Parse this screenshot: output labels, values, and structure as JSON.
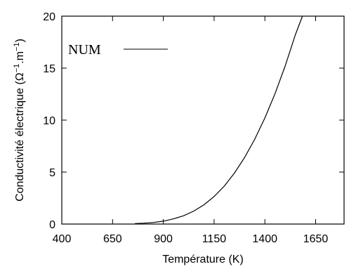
{
  "chart_data": {
    "type": "line",
    "xlabel": "Température (K)",
    "ylabel_main": "Conductivité électrique (Ω",
    "ylabel_exp1": "−1",
    "ylabel_mid": ".m",
    "ylabel_exp2": "−1",
    "ylabel_end": ")",
    "xlim": [
      400,
      1790
    ],
    "ylim": [
      0,
      20
    ],
    "xticks": [
      400,
      650,
      900,
      1150,
      1400,
      1650
    ],
    "yticks": [
      0,
      5,
      10,
      15,
      20
    ],
    "grid": false,
    "legend_position": "top-left",
    "series": [
      {
        "name": "NUM",
        "color": "#000000",
        "x": [
          760,
          800,
          850,
          900,
          950,
          1000,
          1050,
          1100,
          1150,
          1200,
          1250,
          1300,
          1350,
          1400,
          1450,
          1500,
          1550,
          1585
        ],
        "y": [
          0.05,
          0.08,
          0.15,
          0.28,
          0.5,
          0.8,
          1.25,
          1.85,
          2.65,
          3.65,
          4.9,
          6.4,
          8.15,
          10.2,
          12.55,
          15.2,
          18.2,
          20.0
        ]
      }
    ]
  }
}
